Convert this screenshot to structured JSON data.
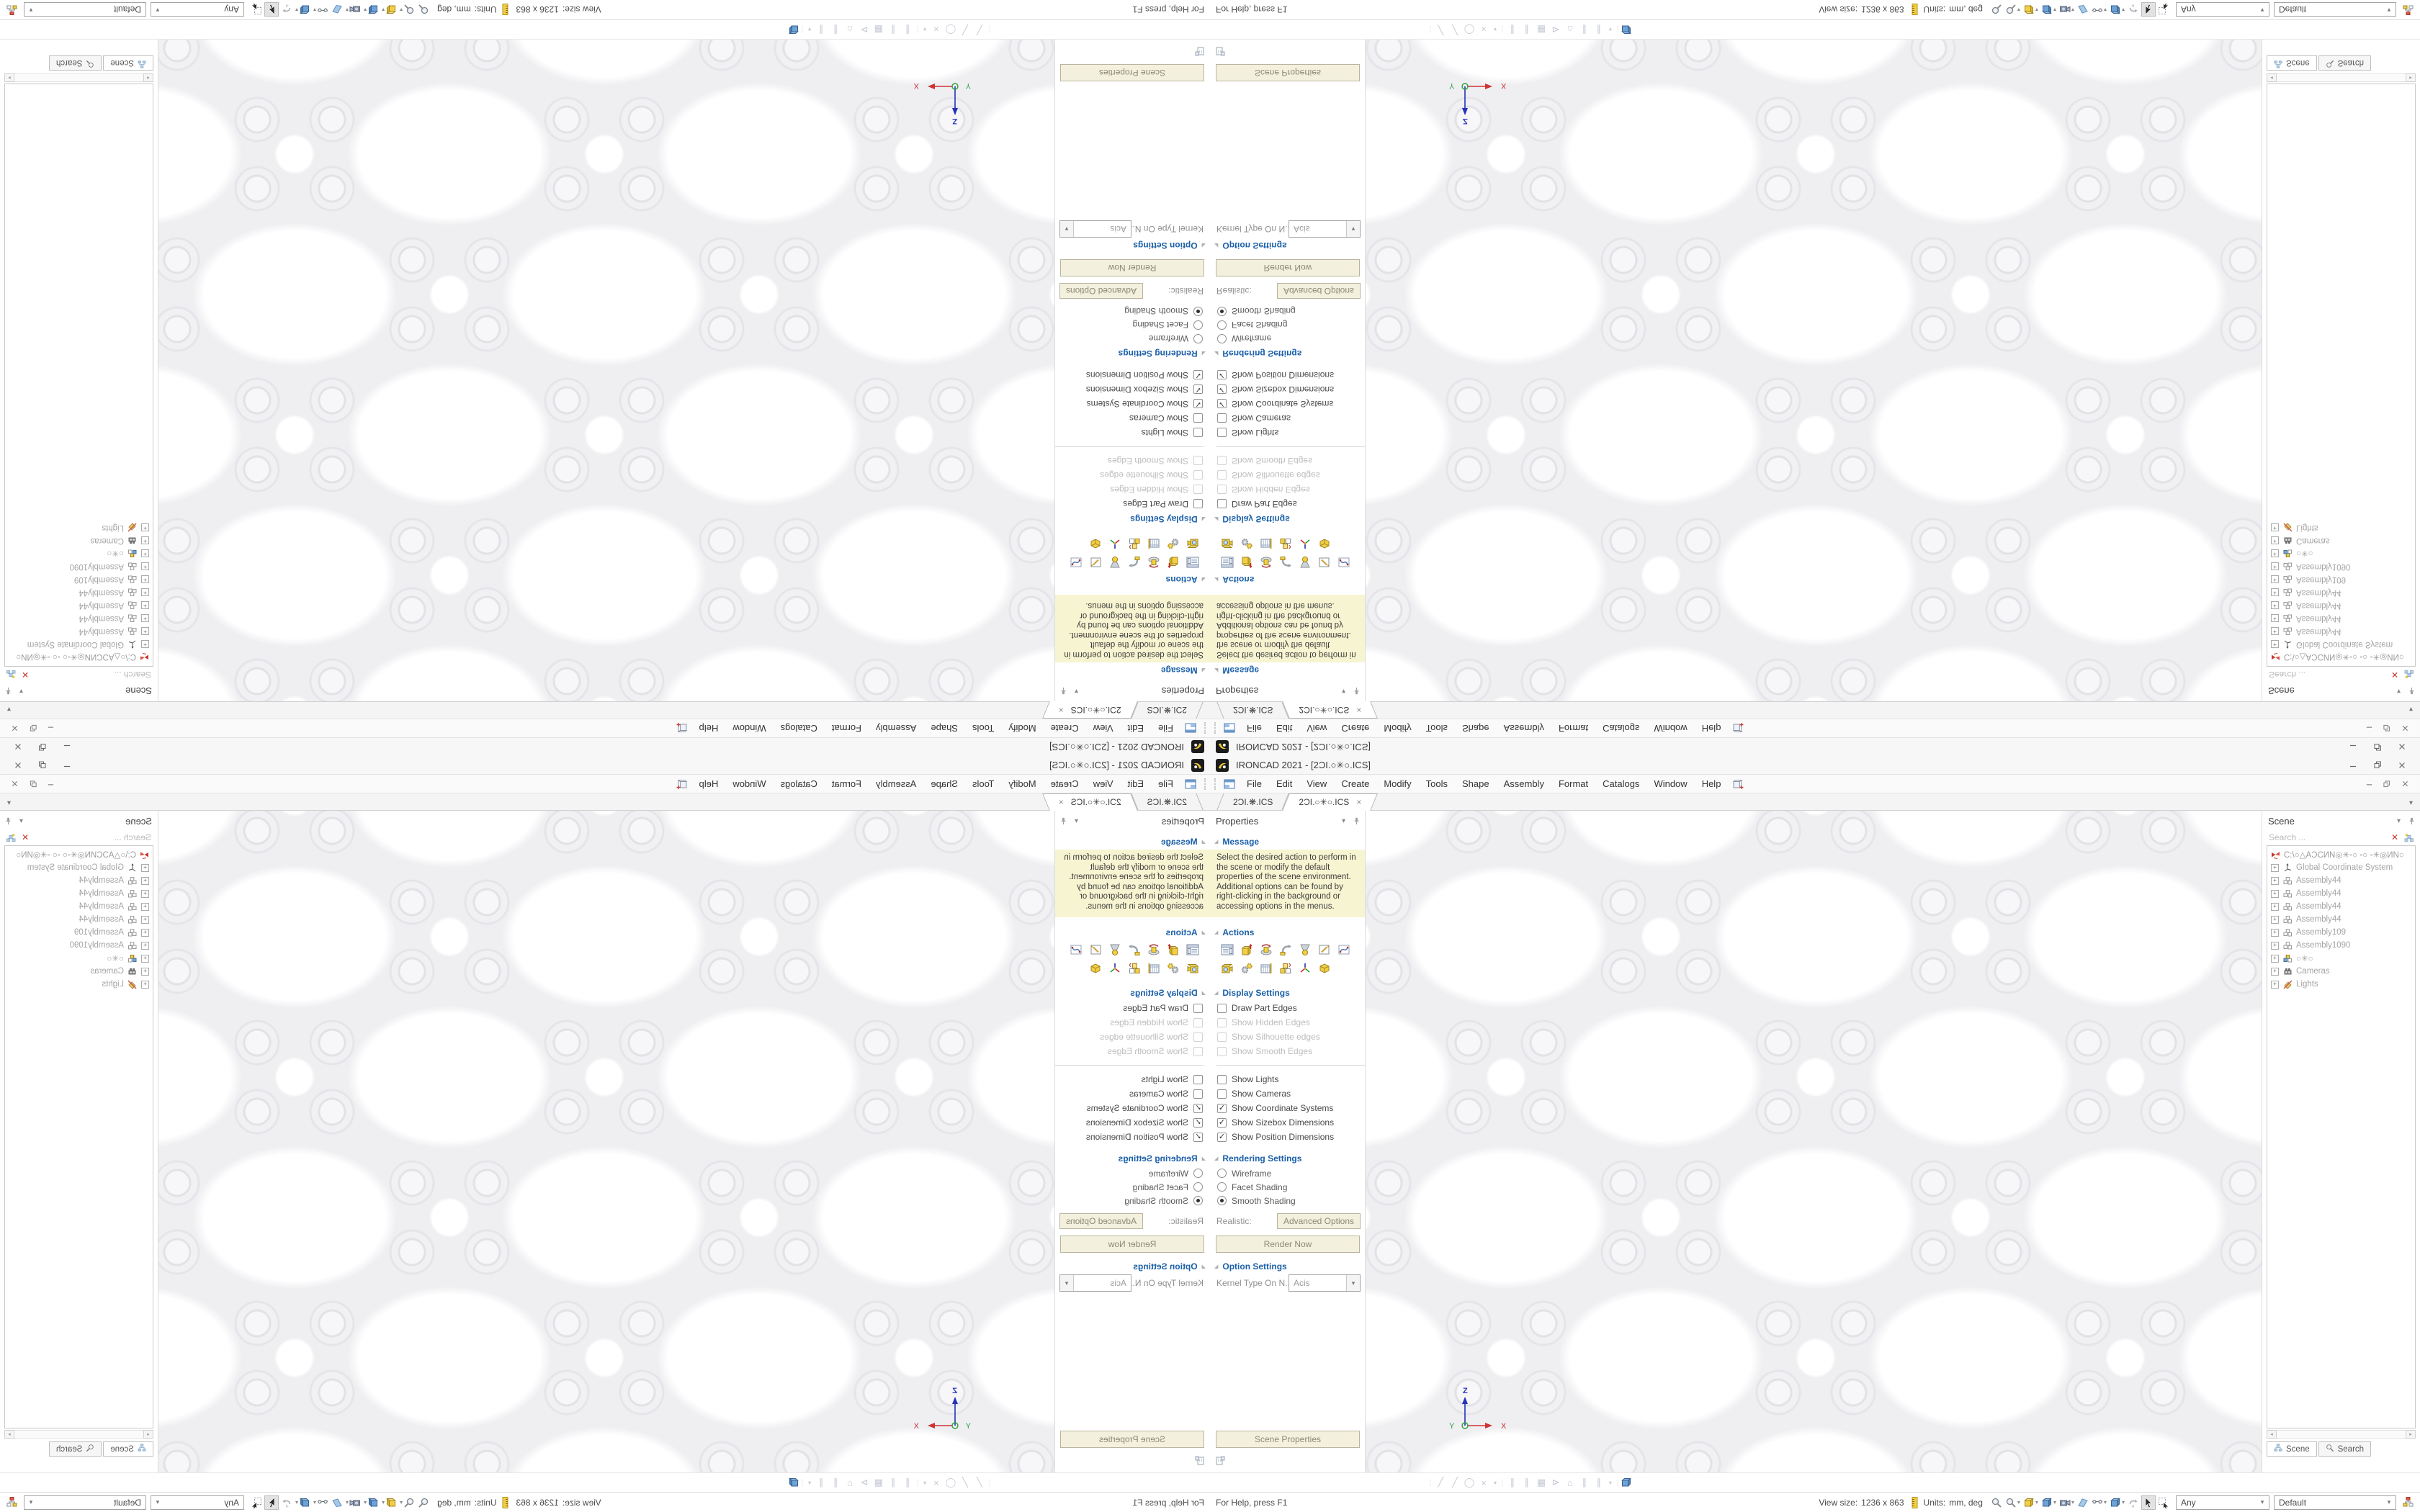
{
  "app": {
    "title": "IRONCAD 2021 - [2ƆI.○✳○.ICS]",
    "window_controls": {
      "minimize": "minimize",
      "restore": "restore",
      "close": "close"
    }
  },
  "glyphs": {
    "dropdown": "▾",
    "collapse": "◢",
    "close": "×",
    "clear": "✕",
    "expander": "+",
    "scroll_left": "◂",
    "scroll_right": "▸"
  },
  "menubar": {
    "items": [
      {
        "label": "File",
        "name": "menu-file"
      },
      {
        "label": "Edit",
        "name": "menu-edit"
      },
      {
        "label": "View",
        "name": "menu-view"
      },
      {
        "label": "Create",
        "name": "menu-create"
      },
      {
        "label": "Modify",
        "name": "menu-modify"
      },
      {
        "label": "Tools",
        "name": "menu-tools"
      },
      {
        "label": "Shape",
        "name": "menu-shape"
      },
      {
        "label": "Assembly",
        "name": "menu-assembly"
      },
      {
        "label": "Format",
        "name": "menu-format"
      },
      {
        "label": "Catalogs",
        "name": "menu-catalogs"
      },
      {
        "label": "Window",
        "name": "menu-window"
      },
      {
        "label": "Help",
        "name": "menu-help"
      }
    ]
  },
  "doc_tabs": {
    "tabs": [
      {
        "label": "2ƆI.❋.ICS",
        "name": "document-tab-1",
        "active": false
      },
      {
        "label": "2ƆI.○✳○.ICS",
        "name": "document-tab-2",
        "active": true
      }
    ]
  },
  "properties_panel": {
    "title": "Properties",
    "message": {
      "title": "Message",
      "text": "Select the desired action to perform in the scene or modify the default properties of the scene environment. Additional options can be found by right-clicking in the background or accessing options in the menus."
    },
    "actions": {
      "title": "Actions",
      "row1": [
        {
          "name": "action-properties-browser",
          "icon": "properties-list-icon"
        },
        {
          "name": "action-extrude",
          "icon": "extrude-icon"
        },
        {
          "name": "action-revolve",
          "icon": "revolve-icon"
        },
        {
          "name": "action-sweep",
          "icon": "sweep-icon"
        },
        {
          "name": "action-loft",
          "icon": "loft-icon"
        },
        {
          "name": "action-2d-sketch",
          "icon": "sketch-icon"
        },
        {
          "name": "action-3d-curve",
          "icon": "curve-icon"
        }
      ],
      "row2": [
        {
          "name": "action-insert-camera",
          "icon": "camera-icon"
        },
        {
          "name": "action-mechanism",
          "icon": "gears-icon"
        },
        {
          "name": "action-sheet-metal",
          "icon": "sheet-metal-icon"
        },
        {
          "name": "action-assembly-blocks",
          "icon": "blocks-icon"
        },
        {
          "name": "action-coordinate-system",
          "icon": "triad-icon"
        },
        {
          "name": "action-custom-part",
          "icon": "part-icon"
        }
      ]
    },
    "display": {
      "title": "Display Settings",
      "items": [
        {
          "label": "Draw Part Edges",
          "checked": false,
          "disabled": false,
          "name": "checkbox-draw-part-edges"
        },
        {
          "label": "Show Hidden Edges",
          "checked": false,
          "disabled": true,
          "name": "checkbox-show-hidden-edges"
        },
        {
          "label": "Show Silhouette edges",
          "checked": false,
          "disabled": true,
          "name": "checkbox-show-silhouette-edges"
        },
        {
          "label": "Show Smooth Edges",
          "checked": false,
          "disabled": true,
          "name": "checkbox-show-smooth-edges"
        },
        {
          "divider": true
        },
        {
          "label": "Show Lights",
          "checked": false,
          "disabled": false,
          "name": "checkbox-show-lights"
        },
        {
          "label": "Show Cameras",
          "checked": false,
          "disabled": false,
          "name": "checkbox-show-cameras"
        },
        {
          "label": "Show Coordinate Systems",
          "checked": true,
          "disabled": false,
          "name": "checkbox-show-coordinate-systems"
        },
        {
          "label": "Show Sizebox Dimensions",
          "checked": true,
          "disabled": false,
          "name": "checkbox-show-sizebox-dimensions"
        },
        {
          "label": "Show Position Dimensions",
          "checked": true,
          "disabled": false,
          "name": "checkbox-show-position-dimensions"
        }
      ]
    },
    "rendering": {
      "title": "Rendering Settings",
      "radios": [
        {
          "label": "Wireframe",
          "selected": false,
          "name": "radio-wireframe"
        },
        {
          "label": "Facet Shading",
          "selected": false,
          "name": "radio-facet-shading"
        },
        {
          "label": "Smooth Shading",
          "selected": true,
          "name": "radio-smooth-shading"
        }
      ],
      "realistic_label": "Realistic:",
      "advanced_button": "Advanced Options",
      "render_button": "Render Now"
    },
    "options": {
      "title": "Option Settings",
      "kernel_label": "Kernel Type On N...",
      "kernel_value": "Acis"
    },
    "scene_properties_button": "Scene Properties"
  },
  "scene_panel": {
    "title": "Scene",
    "search_placeholder": "Search ...",
    "tree": [
      {
        "label": "C:\\○△AƆCИN◎✳◦○ ◦○ ◦✳◎ИN○",
        "icon": "scene-root-icon",
        "root": true,
        "name": "tree-item-scene-root"
      },
      {
        "label": "Global Coordinate System",
        "icon": "coordinate-system-icon",
        "name": "tree-item-global-coordinate-system"
      },
      {
        "label": "Assembly44",
        "icon": "assembly-icon",
        "name": "tree-item-assembly44-1"
      },
      {
        "label": "Assembly44",
        "icon": "assembly-icon",
        "name": "tree-item-assembly44-2"
      },
      {
        "label": "Assembly44",
        "icon": "assembly-icon",
        "name": "tree-item-assembly44-3"
      },
      {
        "label": "Assembly44",
        "icon": "assembly-icon",
        "name": "tree-item-assembly44-4"
      },
      {
        "label": "Assembly109",
        "icon": "assembly-icon",
        "name": "tree-item-assembly109"
      },
      {
        "label": "Assembly1090",
        "icon": "assembly-icon",
        "name": "tree-item-assembly1090"
      },
      {
        "label": "○✳○",
        "icon": "assembly-active-icon",
        "name": "tree-item-active-assembly"
      },
      {
        "label": "Cameras",
        "icon": "cameras-icon",
        "name": "tree-item-cameras"
      },
      {
        "label": "Lights",
        "icon": "lights-icon",
        "name": "tree-item-lights"
      }
    ],
    "tabs": [
      {
        "label": "Scene",
        "icon": "scene-tree-icon",
        "active": true,
        "name": "scene-panel-tab-scene"
      },
      {
        "label": "Search",
        "icon": "search-icon",
        "active": false,
        "name": "scene-panel-tab-search"
      }
    ]
  },
  "viewport": {
    "axis": {
      "x": "X",
      "y": "Y",
      "z": "Z"
    }
  },
  "bottom_toolbar": {
    "items": [
      {
        "g": "⋮",
        "cls": "tgrip",
        "name": "toolbar-grip-1",
        "inter": "true"
      },
      {
        "g": "╱",
        "name": "tool-line-icon"
      },
      {
        "g": "╱",
        "name": "tool-polyline-icon"
      },
      {
        "g": "◯",
        "name": "tool-circle-icon"
      },
      {
        "g": "×",
        "name": "tool-delete-icon"
      },
      {
        "g": "▾",
        "cls": "tdd",
        "name": "tool-more-dropdown"
      },
      {
        "g": "⋮",
        "cls": "tgrip",
        "name": "toolbar-grip-2",
        "inter": "true"
      },
      {
        "g": "∥",
        "name": "tool-offset-a-icon"
      },
      {
        "g": "∥",
        "name": "tool-offset-b-icon"
      },
      {
        "g": "▦",
        "name": "tool-grid-snap-icon"
      },
      {
        "g": "⊳",
        "name": "tool-flag-icon"
      },
      {
        "g": "⌂",
        "name": "tool-home-icon"
      },
      {
        "g": "∥",
        "name": "tool-parallel-a-icon"
      },
      {
        "g": "∥",
        "name": "tool-parallel-b-icon"
      },
      {
        "g": "▾",
        "cls": "tdd",
        "name": "tool-snap-dropdown"
      },
      {
        "g": "⋮",
        "cls": "tgrip",
        "name": "toolbar-grip-3",
        "inter": "true"
      },
      {
        "icon": "blue-cube-icon",
        "name": "tool-triball-icon"
      }
    ]
  },
  "statusbar": {
    "help_text": "For Help, press F1",
    "view_size_label": "View size:",
    "view_size_value": "1236 x 863",
    "units_label": "Units:",
    "units_value": "mm, deg",
    "selection_filter": "Any",
    "render_style": "Default",
    "icons": [
      {
        "name": "zoom-window-icon",
        "icon": "magnifier-icon"
      },
      {
        "name": "zoom-tools-dropdown-icon",
        "icon": "magnifier-icon",
        "dd": true
      },
      {
        "name": "sizebox-display-icon",
        "icon": "yellow-cube-icon",
        "dd": true
      },
      {
        "name": "render-mode-icon",
        "icon": "blue-cube-icon",
        "dd": true
      },
      {
        "name": "camera-view-icon",
        "icon": "camera-view-icon",
        "dd": true
      },
      {
        "name": "shape-display-icon",
        "icon": "wedge-icon"
      },
      {
        "name": "visualization-icon",
        "icon": "glasses-icon",
        "dd": true
      },
      {
        "name": "scene-display-icon",
        "icon": "blue-cube-icon",
        "dd": true
      },
      {
        "name": "undo-view-icon",
        "icon": "undo-arrow-icon"
      },
      {
        "name": "select-cursor-icon",
        "icon": "cursor-icon",
        "pressed": true
      },
      {
        "name": "marquee-select-icon",
        "icon": "marquee-cursor-icon"
      }
    ]
  },
  "colors": {
    "accent_blue": "#1a5fa8",
    "message_bg": "#f7f4d1",
    "button_beige": "#f3f0dd",
    "axis_x": "#cc3333",
    "axis_y": "#2e9e3e",
    "axis_z": "#2233bb",
    "part_gray": "#efeff2"
  }
}
